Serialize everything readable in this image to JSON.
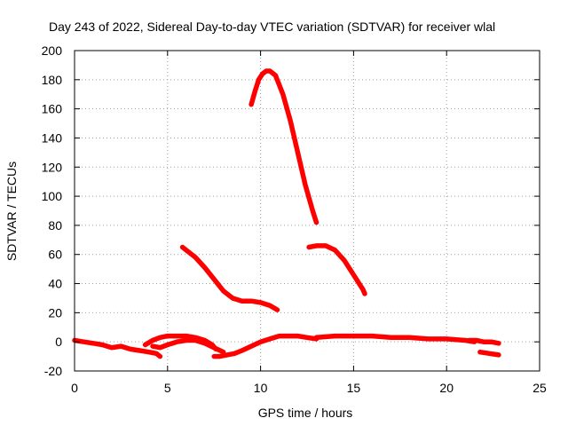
{
  "chart_data": {
    "type": "line",
    "title": "Day 243 of 2022, Sidereal Day-to-day VTEC variation (SDTVAR) for receiver wlal",
    "xlabel": "GPS time / hours",
    "ylabel": "SDTVAR / TECUs",
    "xlim": [
      0,
      25
    ],
    "ylim": [
      -20,
      200
    ],
    "xticks": [
      "0",
      "5",
      "10",
      "15",
      "20",
      "25"
    ],
    "yticks": [
      "-20",
      "0",
      "20",
      "40",
      "60",
      "80",
      "100",
      "120",
      "140",
      "160",
      "180",
      "200"
    ],
    "grid": true,
    "color": "#ff0000",
    "series": [
      {
        "name": "arc-1",
        "x": [
          0.0,
          0.5,
          1.0,
          1.5,
          2.0,
          2.5,
          3.0,
          3.5,
          4.0,
          4.4,
          4.6
        ],
        "y": [
          1,
          0,
          -1,
          -2,
          -4,
          -3,
          -5,
          -6,
          -7,
          -8,
          -10
        ]
      },
      {
        "name": "arc-2",
        "x": [
          3.8,
          4.2,
          4.6,
          5.0,
          5.5,
          6.0,
          6.5,
          7.0,
          7.4,
          7.6
        ],
        "y": [
          -2,
          1,
          3,
          4,
          4,
          4,
          3,
          1,
          -2,
          -5
        ]
      },
      {
        "name": "arc-3",
        "x": [
          4.2,
          4.6,
          5.0,
          5.5,
          6.0,
          6.5,
          7.0,
          7.5,
          8.0
        ],
        "y": [
          -3,
          -4,
          -2,
          0,
          1,
          1,
          -1,
          -4,
          -7
        ]
      },
      {
        "name": "arc-4",
        "x": [
          7.5,
          7.8,
          8.2,
          8.6,
          9.0,
          9.5,
          10.0,
          10.5,
          11.0,
          11.5,
          12.0,
          12.5,
          13.0
        ],
        "y": [
          -10,
          -10,
          -9,
          -8,
          -6,
          -3,
          0,
          2,
          4,
          4,
          4,
          3,
          2
        ]
      },
      {
        "name": "arc-5",
        "x": [
          13.0,
          14.0,
          15.0,
          16.0,
          17.0,
          18.0,
          19.0,
          20.0,
          21.0,
          21.5
        ],
        "y": [
          3,
          4,
          4,
          4,
          3,
          3,
          2,
          2,
          1,
          0
        ]
      },
      {
        "name": "arc-6",
        "x": [
          21.2,
          21.6,
          22.0,
          22.4,
          22.8
        ],
        "y": [
          1,
          1,
          0,
          0,
          -1
        ]
      },
      {
        "name": "arc-7",
        "x": [
          21.8,
          22.3,
          22.8
        ],
        "y": [
          -7,
          -8,
          -9
        ]
      },
      {
        "name": "arc-8",
        "x": [
          5.8,
          6.5,
          7.0,
          7.5,
          8.0,
          8.5,
          9.0,
          9.5,
          10.0,
          10.5,
          10.9
        ],
        "y": [
          65,
          58,
          51,
          43,
          35,
          30,
          28,
          28,
          27,
          25,
          22
        ]
      },
      {
        "name": "arc-9",
        "x": [
          9.5,
          9.7,
          9.9,
          10.1,
          10.3,
          10.5,
          10.8,
          11.2,
          11.6,
          12.0,
          12.4,
          12.8,
          13.0
        ],
        "y": [
          163,
          172,
          180,
          184,
          186,
          186,
          183,
          170,
          152,
          130,
          108,
          90,
          82
        ]
      },
      {
        "name": "arc-10",
        "x": [
          12.6,
          13.0,
          13.5,
          14.0,
          14.5,
          15.0,
          15.5,
          15.6
        ],
        "y": [
          65,
          66,
          66,
          63,
          56,
          46,
          36,
          33
        ]
      }
    ]
  }
}
